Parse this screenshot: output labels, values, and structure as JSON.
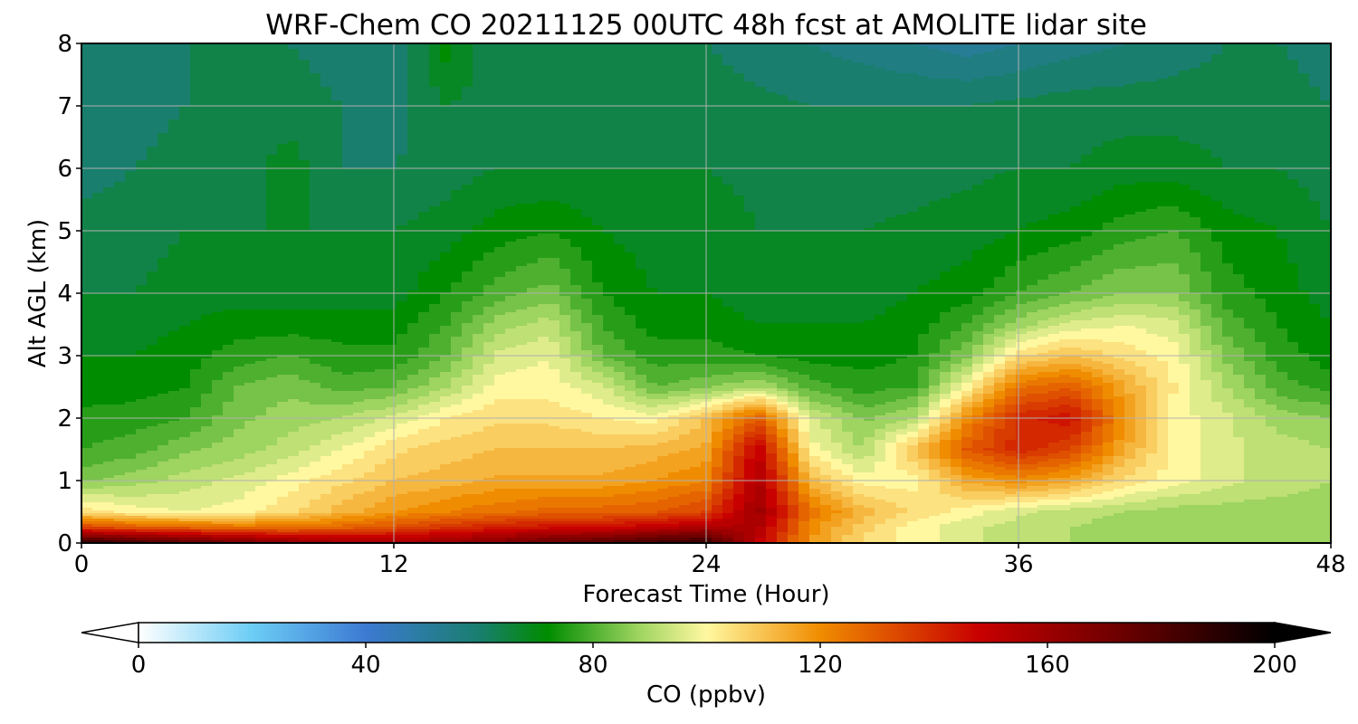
{
  "chart_data": {
    "type": "heatmap",
    "title": "WRF-Chem CO  20211125 00UTC 48h fcst at AMOLITE lidar site",
    "xlabel": "Forecast Time (Hour)",
    "ylabel": "Alt AGL (km)",
    "xlim": [
      0,
      48
    ],
    "ylim": [
      0,
      8
    ],
    "x_ticks": [
      0,
      12,
      24,
      36,
      48
    ],
    "y_ticks": [
      0,
      1,
      2,
      3,
      4,
      5,
      6,
      7,
      8
    ],
    "grid": true,
    "colorbar": {
      "label": "CO  (ppbv)",
      "min": 0,
      "max": 200,
      "ticks": [
        0,
        40,
        80,
        120,
        160,
        200
      ],
      "extend": "both",
      "orientation": "horizontal",
      "stops": [
        {
          "value": 0,
          "color": "#ffffff"
        },
        {
          "value": 20,
          "color": "#6ccdf5"
        },
        {
          "value": 40,
          "color": "#3c7ad2"
        },
        {
          "value": 60,
          "color": "#197e6e"
        },
        {
          "value": 72,
          "color": "#008c00"
        },
        {
          "value": 88,
          "color": "#9ed460"
        },
        {
          "value": 100,
          "color": "#fff8a0"
        },
        {
          "value": 120,
          "color": "#f08c00"
        },
        {
          "value": 148,
          "color": "#c80000"
        },
        {
          "value": 175,
          "color": "#640000"
        },
        {
          "value": 200,
          "color": "#000000"
        }
      ]
    },
    "x": [
      0,
      2,
      4,
      6,
      8,
      10,
      12,
      14,
      16,
      18,
      20,
      22,
      24,
      26,
      28,
      30,
      32,
      34,
      36,
      38,
      40,
      42,
      44,
      46,
      48
    ],
    "y": [
      0,
      0.25,
      0.5,
      1,
      1.5,
      2,
      2.5,
      3,
      3.5,
      4,
      5,
      6,
      7,
      8
    ],
    "values": [
      [
        190,
        185,
        178,
        172,
        165,
        160,
        158,
        162,
        168,
        175,
        180,
        185,
        188,
        150,
        118,
        105,
        100,
        95,
        92,
        90,
        88,
        88,
        88,
        88,
        88
      ],
      [
        135,
        130,
        128,
        125,
        125,
        128,
        132,
        138,
        142,
        145,
        145,
        150,
        155,
        155,
        120,
        108,
        100,
        95,
        92,
        90,
        88,
        88,
        88,
        88,
        88
      ],
      [
        105,
        100,
        98,
        100,
        105,
        112,
        118,
        122,
        125,
        128,
        128,
        130,
        135,
        160,
        125,
        112,
        105,
        100,
        95,
        92,
        90,
        88,
        88,
        88,
        88
      ],
      [
        85,
        88,
        92,
        95,
        100,
        105,
        110,
        112,
        115,
        115,
        115,
        118,
        122,
        155,
        112,
        100,
        100,
        115,
        120,
        115,
        105,
        100,
        95,
        92,
        90
      ],
      [
        78,
        80,
        85,
        88,
        92,
        98,
        105,
        108,
        110,
        110,
        110,
        112,
        115,
        150,
        100,
        90,
        110,
        130,
        140,
        135,
        115,
        100,
        95,
        92,
        90
      ],
      [
        75,
        76,
        78,
        85,
        88,
        90,
        95,
        102,
        105,
        105,
        102,
        100,
        110,
        130,
        95,
        85,
        90,
        120,
        140,
        145,
        120,
        100,
        95,
        88,
        86
      ],
      [
        72,
        72,
        74,
        82,
        85,
        80,
        82,
        90,
        100,
        100,
        95,
        82,
        85,
        90,
        80,
        76,
        78,
        100,
        125,
        130,
        115,
        102,
        90,
        80,
        76
      ],
      [
        70,
        70,
        72,
        76,
        78,
        75,
        75,
        82,
        95,
        98,
        82,
        76,
        76,
        74,
        72,
        72,
        74,
        85,
        105,
        110,
        105,
        100,
        85,
        76,
        72
      ],
      [
        68,
        68,
        70,
        72,
        72,
        72,
        72,
        78,
        88,
        92,
        78,
        72,
        72,
        70,
        70,
        70,
        72,
        78,
        88,
        95,
        98,
        95,
        80,
        74,
        70
      ],
      [
        66,
        66,
        68,
        68,
        68,
        68,
        68,
        74,
        80,
        84,
        74,
        70,
        70,
        68,
        68,
        68,
        70,
        72,
        78,
        82,
        86,
        86,
        76,
        72,
        68
      ],
      [
        64,
        64,
        66,
        66,
        66,
        66,
        66,
        68,
        72,
        74,
        70,
        68,
        68,
        66,
        66,
        66,
        67,
        68,
        70,
        72,
        76,
        78,
        72,
        70,
        66
      ],
      [
        60,
        62,
        64,
        64,
        68,
        62,
        62,
        64,
        66,
        66,
        66,
        66,
        66,
        65,
        64,
        64,
        64,
        65,
        66,
        66,
        68,
        68,
        66,
        66,
        64
      ],
      [
        58,
        60,
        62,
        63,
        64,
        62,
        60,
        66,
        64,
        64,
        64,
        64,
        64,
        63,
        62,
        62,
        62,
        62,
        63,
        64,
        64,
        64,
        64,
        64,
        62
      ],
      [
        58,
        60,
        62,
        62,
        62,
        60,
        58,
        72,
        62,
        62,
        62,
        62,
        62,
        60,
        58,
        56,
        54,
        52,
        54,
        56,
        58,
        60,
        62,
        62,
        60
      ]
    ]
  }
}
